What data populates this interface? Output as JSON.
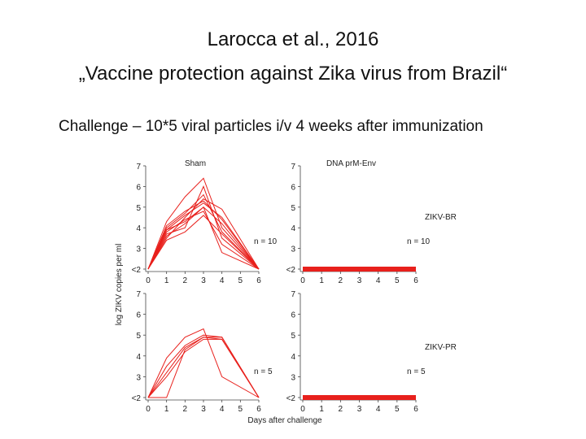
{
  "slide": {
    "title_lines": [
      "Larocca et al., 2016",
      "„Vaccine protection against Zika virus from Brazil“"
    ],
    "subtitle": "Challenge – 10*5 viral particles i/v 4 weeks after immunization"
  },
  "figure": {
    "ylabel": "log ZIKV copies per ml",
    "xlabel": "Days after challenge"
  },
  "chart_data": [
    {
      "type": "line",
      "title": "Sham",
      "annotations": [
        "n = 10"
      ],
      "x": [
        0,
        1,
        2,
        3,
        4,
        6
      ],
      "xlim": [
        0,
        6
      ],
      "xticks": [
        0,
        1,
        2,
        3,
        4,
        5,
        6
      ],
      "ylim": [
        2,
        7
      ],
      "yticks": [
        {
          "value": 2,
          "label": "<2"
        },
        3,
        4,
        5,
        6,
        7
      ],
      "series": [
        {
          "color": "#e8201c",
          "values": [
            2,
            4.3,
            5.5,
            6.4,
            4.0,
            2
          ]
        },
        {
          "color": "#e8201c",
          "values": [
            2,
            3.7,
            4.0,
            6.0,
            3.5,
            2
          ]
        },
        {
          "color": "#e8201c",
          "values": [
            2,
            4.0,
            4.7,
            5.6,
            3.8,
            2
          ]
        },
        {
          "color": "#e8201c",
          "values": [
            2,
            3.5,
            4.5,
            5.4,
            4.9,
            2
          ]
        },
        {
          "color": "#e8201c",
          "values": [
            2,
            3.9,
            4.6,
            5.2,
            4.5,
            2
          ]
        },
        {
          "color": "#e8201c",
          "values": [
            2,
            3.6,
            4.2,
            5.0,
            4.2,
            2
          ]
        },
        {
          "color": "#e8201c",
          "values": [
            2,
            3.8,
            4.4,
            4.8,
            3.2,
            2
          ]
        },
        {
          "color": "#e8201c",
          "values": [
            2,
            3.4,
            3.8,
            4.6,
            3.7,
            2
          ]
        },
        {
          "color": "#e8201c",
          "values": [
            2,
            3.9,
            4.3,
            5.0,
            2.8,
            2
          ]
        },
        {
          "color": "#e8201c",
          "values": [
            2,
            4.1,
            4.8,
            5.3,
            4.4,
            2
          ]
        }
      ]
    },
    {
      "type": "line",
      "title": "DNA prM-Env",
      "annotations": [
        "ZIKV-BR",
        "n = 10"
      ],
      "x": [
        0,
        1,
        2,
        3,
        4,
        5,
        6
      ],
      "xlim": [
        0,
        6
      ],
      "xticks": [
        0,
        1,
        2,
        3,
        4,
        5,
        6
      ],
      "ylim": [
        2,
        7
      ],
      "yticks": [
        {
          "value": 2,
          "label": "<2"
        },
        3,
        4,
        5,
        6,
        7
      ],
      "series": [
        {
          "color": "#e8201c",
          "values": [
            2,
            2,
            2,
            2,
            2,
            2,
            2
          ]
        }
      ]
    },
    {
      "type": "line",
      "annotations": [
        "n = 5"
      ],
      "x": [
        0,
        1,
        2,
        3,
        4,
        6
      ],
      "xlim": [
        0,
        6
      ],
      "xticks": [
        0,
        1,
        2,
        3,
        4,
        5,
        6
      ],
      "ylim": [
        2,
        7
      ],
      "yticks": [
        {
          "value": 2,
          "label": "<2"
        },
        3,
        4,
        5,
        6,
        7
      ],
      "series": [
        {
          "color": "#e8201c",
          "values": [
            2,
            3.9,
            4.9,
            5.3,
            3.0,
            2
          ]
        },
        {
          "color": "#e8201c",
          "values": [
            2,
            2,
            4.3,
            4.9,
            4.9,
            2
          ]
        },
        {
          "color": "#e8201c",
          "values": [
            2,
            3.5,
            4.5,
            5.0,
            4.9,
            2
          ]
        },
        {
          "color": "#e8201c",
          "values": [
            2,
            3.2,
            4.4,
            4.9,
            4.8,
            2
          ]
        },
        {
          "color": "#e8201c",
          "values": [
            2,
            3.0,
            4.2,
            4.8,
            4.8,
            2
          ]
        }
      ]
    },
    {
      "type": "line",
      "annotations": [
        "ZIKV-PR",
        "n = 5"
      ],
      "x": [
        0,
        1,
        2,
        3,
        4,
        5,
        6
      ],
      "xlim": [
        0,
        6
      ],
      "xticks": [
        0,
        1,
        2,
        3,
        4,
        5,
        6
      ],
      "ylim": [
        2,
        7
      ],
      "yticks": [
        {
          "value": 2,
          "label": "<2"
        },
        3,
        4,
        5,
        6,
        7
      ],
      "series": [
        {
          "color": "#e8201c",
          "values": [
            2,
            2,
            2,
            2,
            2,
            2,
            2
          ]
        }
      ]
    }
  ]
}
